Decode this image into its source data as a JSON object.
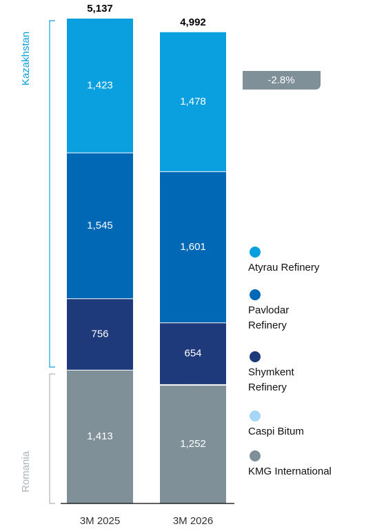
{
  "chart_data": {
    "type": "stacked-bar",
    "categories": [
      "3M 2025",
      "3M 2026"
    ],
    "series": [
      {
        "name": "KMG International",
        "color": "#7f9099",
        "values": [
          1413,
          1252
        ],
        "value_labels": [
          "1,413",
          "1,252"
        ]
      },
      {
        "name": "Caspi Bitum",
        "color": "#a6d8f5",
        "values": [
          0,
          8
        ]
      },
      {
        "name": "Shymkent Refinery",
        "color": "#1f3a7a",
        "values": [
          756,
          654
        ]
      },
      {
        "name": "Pavlodar Refinery",
        "color": "#0068b4",
        "values": [
          1545,
          1601
        ],
        "value_labels": [
          "1,545",
          "1,601"
        ]
      },
      {
        "name": "Atyrau Refinery",
        "color": "#0aa0e0",
        "values": [
          1423,
          1478
        ],
        "value_labels": [
          "1,423",
          "1,478"
        ]
      }
    ],
    "totals": {
      "values": [
        5137,
        4992
      ],
      "value_labels": [
        "5,137",
        "4,992"
      ]
    },
    "annotation": "-2.8%",
    "groups": [
      {
        "label": "Kazakhstan",
        "color": "#0aa0e0"
      },
      {
        "label": "Romania",
        "color": "#aab4ba"
      }
    ]
  }
}
